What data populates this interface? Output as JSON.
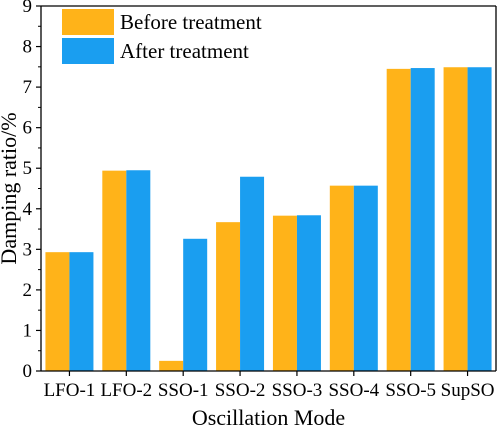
{
  "chart_data": {
    "type": "bar",
    "title": "",
    "xlabel": "Oscillation Mode",
    "ylabel": "Damping ratio/%",
    "ylim": [
      0,
      9
    ],
    "yticks": [
      0,
      1,
      2,
      3,
      4,
      5,
      6,
      7,
      8,
      9
    ],
    "grid": false,
    "legend_position": "top-left",
    "categories": [
      "LFO-1",
      "LFO-2",
      "SSO-1",
      "SSO-2",
      "SSO-3",
      "SSO-4",
      "SSO-5",
      "SupSO"
    ],
    "series": [
      {
        "name": "Before treatment",
        "color": "#FFB319",
        "values": [
          2.93,
          4.94,
          0.25,
          3.67,
          3.83,
          4.57,
          7.45,
          7.49
        ]
      },
      {
        "name": "After treatment",
        "color": "#1A9EF0",
        "values": [
          2.93,
          4.95,
          3.26,
          4.79,
          3.84,
          4.57,
          7.47,
          7.49
        ]
      }
    ]
  }
}
